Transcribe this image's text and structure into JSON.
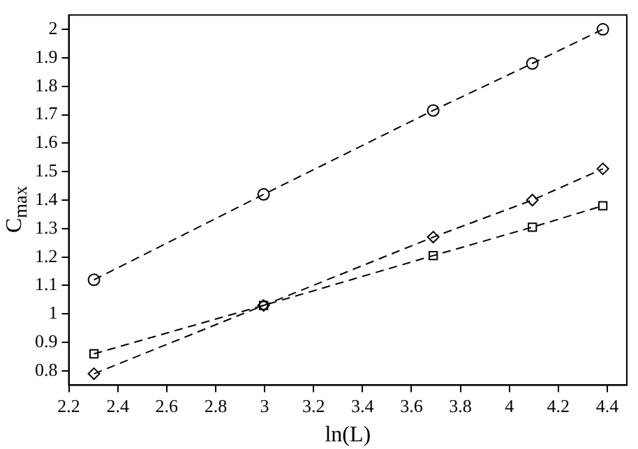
{
  "chart_data": {
    "type": "line",
    "xlabel": "ln(L)",
    "ylabel": "C$_{max}$",
    "x": [
      2.303,
      2.996,
      3.689,
      4.094,
      4.382
    ],
    "series": [
      {
        "color": "#000000",
        "marker": "circle",
        "line_style": "dashed",
        "values": [
          1.12,
          1.42,
          1.715,
          1.88,
          2.0
        ]
      },
      {
        "color": "#000000",
        "marker": "square",
        "line_style": "dashed",
        "values": [
          0.86,
          1.03,
          1.205,
          1.305,
          1.38
        ]
      },
      {
        "color": "#000000",
        "marker": "diamond",
        "line_style": "dashed",
        "values": [
          0.79,
          1.03,
          1.27,
          1.4,
          1.51
        ]
      }
    ],
    "xlim": [
      2.2,
      4.48
    ],
    "xticks": [
      2.2,
      2.4,
      2.6,
      2.8,
      3,
      3.2,
      3.4,
      3.6,
      3.8,
      4,
      4.2,
      4.4
    ],
    "ylim": [
      0.75,
      2.05
    ],
    "yticks": [
      0.8,
      0.9,
      1,
      1.1,
      1.2,
      1.3,
      1.4,
      1.5,
      1.6,
      1.7,
      1.8,
      1.9,
      2
    ],
    "grid": false,
    "legend": false
  }
}
